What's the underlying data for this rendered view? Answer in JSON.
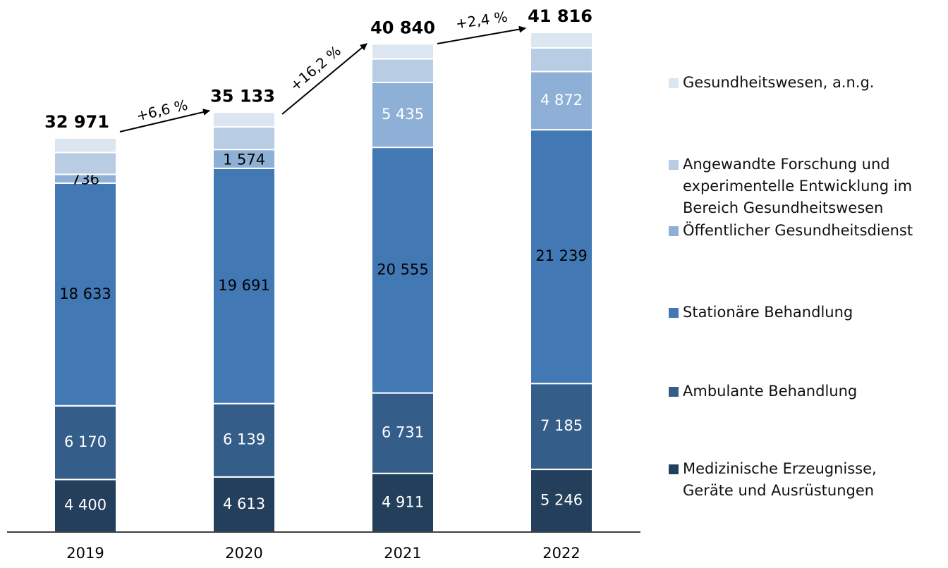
{
  "chart_data": {
    "type": "stacked_bar",
    "categories": [
      "2019",
      "2020",
      "2021",
      "2022"
    ],
    "ylim": [
      0,
      44000
    ],
    "series": [
      {
        "name": "Medizinische Erzeugnisse,\nGeräte und Ausrüstungen",
        "color": "#243f5c",
        "values": [
          4400,
          4613,
          4911,
          5246
        ],
        "value_labels": [
          "4 400",
          "4 613",
          "4 911",
          "5 246"
        ]
      },
      {
        "name": "Ambulante Behandlung",
        "color": "#345d8a",
        "values": [
          6170,
          6139,
          6731,
          7185
        ],
        "value_labels": [
          "6 170",
          "6 139",
          "6 731",
          "7 185"
        ]
      },
      {
        "name": "Stationäre Behandlung",
        "color": "#4279b5",
        "values": [
          18633,
          19691,
          20555,
          21239
        ],
        "value_labels": [
          "18 633",
          "19 691",
          "20 555",
          "21 239"
        ]
      },
      {
        "name": "Öffentlicher Gesundheitsdienst",
        "color": "#8eb0d6",
        "values": [
          736,
          1574,
          5435,
          4872
        ],
        "value_labels": [
          "736",
          "1 574",
          "5 435",
          "4 872"
        ]
      },
      {
        "name": "Angewandte Forschung und\nexperimentelle Entwicklung im\nBereich Gesundheitswesen",
        "color": "#b8cce4",
        "values": [
          1830,
          1890,
          1968,
          1974
        ]
      },
      {
        "name": "Gesundheitswesen, a.n.g.",
        "color": "#dce6f0",
        "values": [
          1202,
          1226,
          1240,
          1300
        ]
      }
    ],
    "totals": [
      32971,
      35133,
      40840,
      41816
    ],
    "total_labels": [
      "32 971",
      "35 133",
      "40 840",
      "41 816"
    ],
    "annotations": [
      "+6,6 %",
      "+16,2 %",
      "+2,4 %"
    ]
  }
}
